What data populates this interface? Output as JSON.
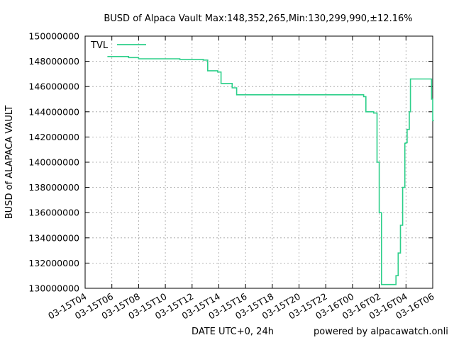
{
  "chart_data": {
    "type": "line",
    "title": "BUSD of Alpaca Vault Max:148,352,265,Min:130,299,990,±12.16%",
    "xlabel": "DATE UTC+0, 24h",
    "ylabel": "BUSD of ALAPACA VAULT",
    "credit": "powered by alpacawatch.onli",
    "legend_position": "top-left",
    "grid": true,
    "colors": {
      "series": "#2dcf8a"
    },
    "ylim": [
      130000000,
      150000000
    ],
    "xlim": [
      "03-15T04:00",
      "03-16T06:00"
    ],
    "y_ticks": [
      "130000000",
      "132000000",
      "134000000",
      "136000000",
      "138000000",
      "140000000",
      "142000000",
      "144000000",
      "146000000",
      "148000000",
      "150000000"
    ],
    "x_ticks": [
      "03-15T04",
      "03-15T06",
      "03-15T08",
      "03-15T10",
      "03-15T12",
      "03-15T14",
      "03-15T16",
      "03-15T18",
      "03-15T20",
      "03-15T22",
      "03-16T00",
      "03-16T02",
      "03-16T04",
      "03-16T06"
    ],
    "series": [
      {
        "name": "TVL",
        "step": true,
        "points": [
          [
            "03-15T05:40",
            148380000
          ],
          [
            "03-15T07:15",
            148300000
          ],
          [
            "03-15T08:00",
            148200000
          ],
          [
            "03-15T11:05",
            148150000
          ],
          [
            "03-15T12:50",
            148100000
          ],
          [
            "03-15T13:10",
            147250000
          ],
          [
            "03-15T13:55",
            147150000
          ],
          [
            "03-15T14:10",
            146250000
          ],
          [
            "03-15T15:00",
            145900000
          ],
          [
            "03-15T15:20",
            145350000
          ],
          [
            "03-16T00:50",
            145200000
          ],
          [
            "03-16T01:00",
            144000000
          ],
          [
            "03-16T01:35",
            143900000
          ],
          [
            "03-16T01:50",
            140000000
          ],
          [
            "03-16T02:00",
            136000000
          ],
          [
            "03-16T02:10",
            130300000
          ],
          [
            "03-16T03:15",
            131000000
          ],
          [
            "03-16T03:25",
            132800000
          ],
          [
            "03-16T03:35",
            135000000
          ],
          [
            "03-16T03:45",
            138000000
          ],
          [
            "03-16T03:55",
            141500000
          ],
          [
            "03-16T04:00",
            141550000
          ],
          [
            "03-16T04:05",
            142600000
          ],
          [
            "03-16T04:15",
            144000000
          ],
          [
            "03-16T04:20",
            146600000
          ],
          [
            "03-16T05:50",
            146600000
          ],
          [
            "03-16T05:55",
            145000000
          ],
          [
            "03-16T06:00",
            143300000
          ],
          [
            "03-16T06:05",
            143300000
          ]
        ]
      }
    ]
  }
}
